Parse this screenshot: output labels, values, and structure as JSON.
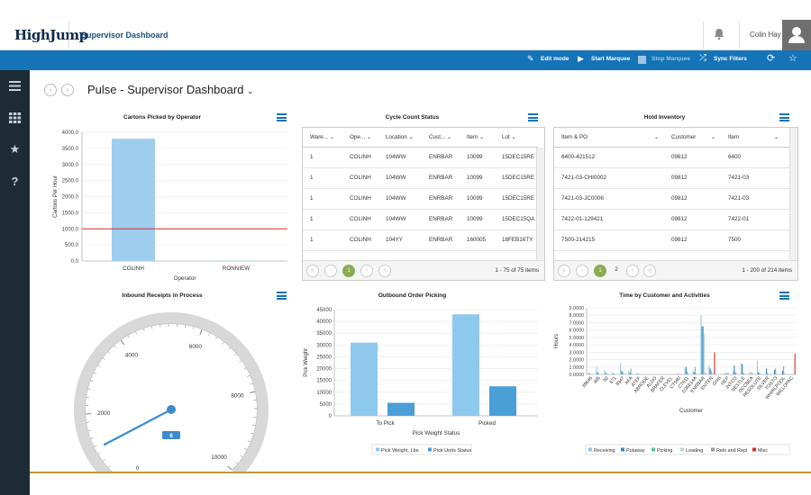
{
  "app": {
    "logo": "HighJump",
    "title": "Supervisor Dashboard",
    "user": "Colin Hay"
  },
  "toolbar": {
    "edit_mode": "Edit mode",
    "start_marquee": "Start Marquee",
    "stop_marquee": "Stop Marquee",
    "sync_filters": "Sync Filters"
  },
  "page": {
    "title": "Pulse - Supervisor Dashboard"
  },
  "cartons": {
    "title": "Cartons Picked by Operator"
  },
  "cycle": {
    "title": "Cycle Count Status",
    "columns": [
      "Ware...",
      "Ope...",
      "Location",
      "Cust...",
      "Item",
      "Lot"
    ],
    "rows": [
      [
        "1",
        "COLINH",
        "104WW",
        "ENRBAR",
        "10099",
        "15DEC15RE"
      ],
      [
        "1",
        "COLINH",
        "104WW",
        "ENRBAR",
        "10099",
        "15DEC15RE"
      ],
      [
        "1",
        "COLINH",
        "104WW",
        "ENRBAR",
        "10099",
        "15DEC15RE"
      ],
      [
        "1",
        "COLINH",
        "104WW",
        "ENRBAR",
        "10099",
        "15DEC15QA"
      ],
      [
        "1",
        "COLINH",
        "104YY",
        "ENRBAR",
        "160005",
        "18FEB16TY"
      ]
    ],
    "pager": {
      "current": "1",
      "info": "1 - 75 of 75 items"
    }
  },
  "hold": {
    "title": "Hold Inventory",
    "columns": [
      "Item & PO",
      "Customer",
      "Item"
    ],
    "rows": [
      [
        "6400-421512",
        "09812",
        "6400"
      ],
      [
        "7421-03-CHI0002",
        "09812",
        "7421-03"
      ],
      [
        "7421-03-JC0006",
        "09812",
        "7421-03"
      ],
      [
        "7422-01-129421",
        "09812",
        "7422-01"
      ],
      [
        "7500-214215",
        "09812",
        "7500"
      ]
    ],
    "pager": {
      "current": "1",
      "next": "2",
      "info": "1 - 200 of 214 items"
    }
  },
  "inbound": {
    "title": "Inbound Receipts in Process",
    "value_label": "6"
  },
  "outbound": {
    "title": "Outbound Order Picking"
  },
  "time": {
    "title": "Time by Customer and Activities"
  },
  "chart_data": [
    {
      "type": "bar",
      "title": "Cartons Picked by Operator",
      "xlabel": "Operator",
      "ylabel": "Cartons Per Hour",
      "categories": [
        "COLINH",
        "RONNIEW"
      ],
      "values": [
        3800,
        10
      ],
      "ylim": [
        0,
        4000
      ],
      "yticks": [
        "0.0",
        "500.0",
        "1000.0",
        "1500.0",
        "2000.0",
        "2500.0",
        "3000.0",
        "3500.0",
        "4000.0"
      ],
      "target_line": 1000,
      "bar_color": "#9fcdee",
      "line_color": "#d62b2b",
      "grid": true
    },
    {
      "type": "gauge",
      "title": "Inbound Receipts in Process",
      "value": 6,
      "range": [
        0,
        10000
      ],
      "ticks": [
        "0",
        "2000",
        "4000",
        "6000",
        "8000",
        "10000"
      ],
      "needle_color": "#3c8ccc"
    },
    {
      "type": "bar",
      "title": "Outbound Order Picking",
      "xlabel": "Pick Weight Status",
      "ylabel": "Pick Weight",
      "categories": [
        "To Pick",
        "Picked"
      ],
      "series": [
        {
          "name": "Pick Weight, Lbs",
          "values": [
            31000,
            43000
          ],
          "color": "#8ec8ec"
        },
        {
          "name": "Pick Units Status",
          "values": [
            5500,
            12500
          ],
          "color": "#4a9fd6"
        }
      ],
      "ylim": [
        0,
        45000
      ],
      "yticks": [
        "0",
        "5000",
        "10000",
        "15000",
        "20000",
        "25000",
        "30000",
        "35000",
        "40000",
        "45000"
      ],
      "legend": "bottom",
      "grid": true
    },
    {
      "type": "bar",
      "title": "Time by Customer and Activities",
      "xlabel": "Customer",
      "ylabel": "Hours",
      "categories": [
        "39646",
        "485",
        "50",
        "871",
        "9347",
        "AFA",
        "ATEF",
        "ABRODE",
        "ALDO",
        "BRAFER",
        "CLEVEL",
        "CT590",
        "CT611",
        "D36E14A",
        "ENRBAR",
        "ENTER",
        "GNS",
        "HEP",
        "INTCO",
        "NESTLE",
        "OCCBEA",
        "RESOLUTE",
        "SILVER",
        "TOSTO",
        "WHIRLPOOL",
        "WILLOPAC"
      ],
      "series": [
        {
          "name": "Receiving",
          "color": "#8ec8ec",
          "values": [
            0.2,
            1.0,
            0.6,
            0.3,
            1.5,
            0.5,
            0.1,
            0,
            0,
            0,
            0,
            0,
            0.8,
            0.5,
            8.0,
            1.2,
            0,
            0.2,
            0.4,
            1.5,
            0.3,
            1.8,
            0,
            0,
            0,
            0
          ]
        },
        {
          "name": "Putaway",
          "color": "#3a86c8",
          "values": [
            0.1,
            0.3,
            0.2,
            0.1,
            0.5,
            0.2,
            0.1,
            0,
            0,
            0,
            0,
            0.1,
            1.0,
            0.3,
            6.5,
            0.8,
            0,
            0.1,
            1.2,
            1.4,
            0,
            0.3,
            0.8,
            0.6,
            0.5,
            0
          ]
        },
        {
          "name": "Picking",
          "color": "#5bbfa8",
          "values": [
            0,
            0.1,
            0.1,
            0,
            0.3,
            0.8,
            0,
            0,
            0,
            0,
            0,
            0,
            0.4,
            1.0,
            6.5,
            0.5,
            0,
            0.2,
            0.3,
            0.2,
            0.3,
            0.2,
            0.2,
            0.8,
            1.1,
            0
          ]
        },
        {
          "name": "Loading",
          "color": "#b8d4e6",
          "values": [
            0,
            0,
            0.1,
            0,
            0.2,
            0.1,
            0,
            0,
            0,
            0,
            0,
            0,
            0.1,
            0.2,
            5.5,
            0.3,
            0,
            0.3,
            0.2,
            0.1,
            0.2,
            0.1,
            0.1,
            0.1,
            0.2,
            0
          ]
        },
        {
          "name": "Relo and Repl",
          "color": "#9a9a9a",
          "values": [
            0,
            0,
            0,
            0,
            0,
            0,
            0,
            0,
            0,
            0,
            0,
            0,
            0,
            0,
            0.2,
            0,
            0,
            0,
            0,
            0,
            0,
            0,
            0,
            0,
            0,
            0
          ]
        },
        {
          "name": "Misc",
          "color": "#d62b2b",
          "values": [
            0,
            0,
            0,
            0,
            0,
            0,
            0,
            0,
            0,
            0,
            0,
            0,
            0,
            0,
            0,
            3.0,
            0,
            0,
            0,
            0,
            0,
            0,
            0,
            0,
            0,
            2.8
          ]
        }
      ],
      "ylim": [
        0,
        9
      ],
      "yticks": [
        "0.0000",
        "1.0000",
        "2.0000",
        "3.0000",
        "4.0000",
        "5.0000",
        "6.0000",
        "7.0000",
        "8.0000",
        "9.0000"
      ],
      "legend": "bottom",
      "grid": true
    }
  ]
}
